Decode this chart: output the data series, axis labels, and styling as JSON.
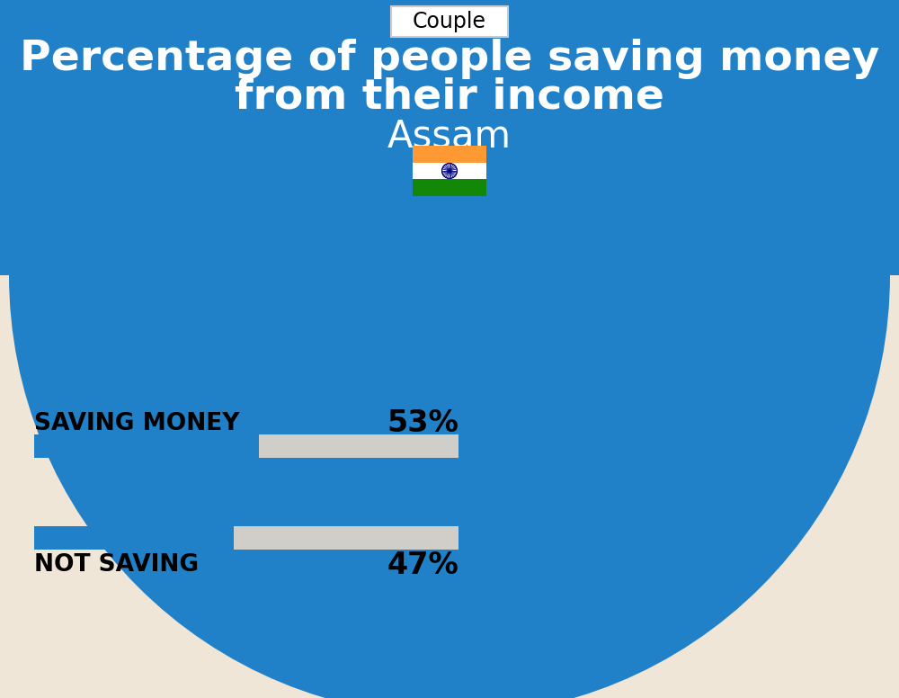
{
  "title_line1": "Percentage of people saving money",
  "title_line2": "from their income",
  "subtitle": "Assam",
  "tab_label": "Couple",
  "bg_top_color": "#2181C8",
  "bg_bottom_color": "#F0E6D8",
  "bar_color": "#2181C8",
  "bar_bg_color": "#D0CEC8",
  "saving_label": "SAVING MONEY",
  "saving_value": 53,
  "saving_pct_label": "53%",
  "not_saving_label": "NOT SAVING",
  "not_saving_value": 47,
  "not_saving_pct_label": "47%",
  "title_fontsize": 34,
  "subtitle_fontsize": 30,
  "label_fontsize": 19,
  "pct_fontsize": 24,
  "tab_fontsize": 17,
  "fig_width": 10.0,
  "fig_height": 7.76,
  "dpi": 100
}
